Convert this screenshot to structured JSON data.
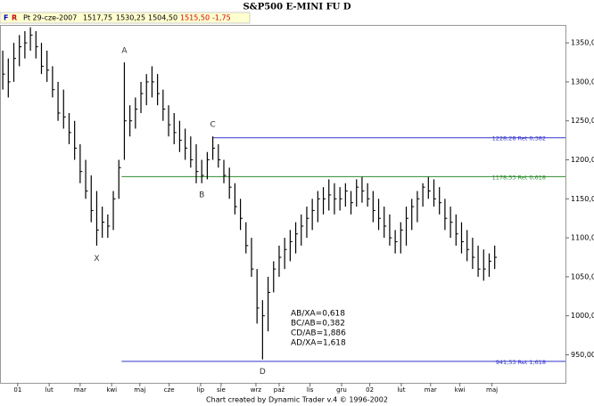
{
  "header": {
    "f": "F",
    "r": "R",
    "date": "Pt 29-cze-2007",
    "open": "1517,75",
    "high": "1530,25",
    "low": "1504,50",
    "close": "1515,50",
    "change": "-1,75"
  },
  "chart_data": {
    "type": "ohlc",
    "title": "S&P500 E-MINI FU D",
    "high": [
      1340,
      1330,
      1350,
      1360,
      1365,
      1370,
      1365,
      1350,
      1340,
      1320,
      1300,
      1290,
      1260,
      1250,
      1220,
      1200,
      1180,
      1160,
      1140,
      1130,
      1160,
      1200,
      1325,
      1270,
      1280,
      1300,
      1310,
      1320,
      1310,
      1290,
      1270,
      1260,
      1250,
      1240,
      1230,
      1220,
      1200,
      1210,
      1230,
      1220,
      1200,
      1190,
      1170,
      1150,
      1120,
      1100,
      1060,
      1020,
      1050,
      1070,
      1090,
      1100,
      1110,
      1120,
      1130,
      1140,
      1150,
      1160,
      1165,
      1175,
      1170,
      1165,
      1170,
      1160,
      1175,
      1178,
      1170,
      1160,
      1150,
      1140,
      1130,
      1110,
      1120,
      1140,
      1150,
      1160,
      1170,
      1178,
      1175,
      1165,
      1150,
      1140,
      1130,
      1120,
      1110,
      1100,
      1090,
      1085,
      1080,
      1090
    ],
    "low": [
      1290,
      1280,
      1300,
      1320,
      1330,
      1340,
      1330,
      1310,
      1300,
      1280,
      1250,
      1240,
      1220,
      1200,
      1170,
      1150,
      1120,
      1090,
      1100,
      1100,
      1110,
      1150,
      1200,
      1230,
      1240,
      1260,
      1270,
      1280,
      1270,
      1250,
      1230,
      1220,
      1210,
      1200,
      1190,
      1170,
      1170,
      1175,
      1200,
      1190,
      1170,
      1150,
      1130,
      1110,
      1080,
      1050,
      990,
      944,
      980,
      1030,
      1050,
      1060,
      1070,
      1080,
      1090,
      1100,
      1110,
      1120,
      1130,
      1135,
      1130,
      1135,
      1140,
      1130,
      1140,
      1145,
      1140,
      1120,
      1110,
      1100,
      1090,
      1080,
      1080,
      1090,
      1110,
      1120,
      1140,
      1150,
      1140,
      1130,
      1110,
      1100,
      1090,
      1080,
      1070,
      1060,
      1050,
      1045,
      1050,
      1060
    ],
    "close": [
      1310,
      1300,
      1330,
      1345,
      1350,
      1360,
      1345,
      1320,
      1315,
      1290,
      1260,
      1255,
      1235,
      1215,
      1185,
      1160,
      1135,
      1110,
      1120,
      1115,
      1150,
      1190,
      1250,
      1250,
      1265,
      1285,
      1300,
      1300,
      1285,
      1265,
      1245,
      1235,
      1225,
      1215,
      1200,
      1185,
      1180,
      1200,
      1215,
      1200,
      1180,
      1165,
      1140,
      1125,
      1090,
      1060,
      1010,
      1000,
      1030,
      1060,
      1075,
      1085,
      1095,
      1105,
      1115,
      1125,
      1135,
      1150,
      1150,
      1155,
      1150,
      1150,
      1160,
      1145,
      1165,
      1160,
      1150,
      1135,
      1125,
      1115,
      1100,
      1095,
      1110,
      1125,
      1140,
      1150,
      1165,
      1160,
      1150,
      1145,
      1125,
      1120,
      1105,
      1095,
      1085,
      1075,
      1060,
      1060,
      1070,
      1075
    ],
    "color": "#000000",
    "xlim": [
      -0.5,
      101.8
    ],
    "xticks": [
      {
        "value": 2.7,
        "label": "01"
      },
      {
        "value": 8.4,
        "label": "lut"
      },
      {
        "value": 14,
        "label": "mar"
      },
      {
        "value": 19.7,
        "label": "kwi"
      },
      {
        "value": 24.8,
        "label": "maj"
      },
      {
        "value": 30.1,
        "label": "cze"
      },
      {
        "value": 35.8,
        "label": "lip"
      },
      {
        "value": 39.5,
        "label": "sie"
      },
      {
        "value": 45.8,
        "label": "wrz"
      },
      {
        "value": 50,
        "label": "paź"
      },
      {
        "value": 55.6,
        "label": "lis"
      },
      {
        "value": 61.3,
        "label": "gru"
      },
      {
        "value": 66.4,
        "label": "02"
      },
      {
        "value": 72.1,
        "label": "lut"
      },
      {
        "value": 77.4,
        "label": "mar"
      },
      {
        "value": 82.7,
        "label": "kwi"
      },
      {
        "value": 88.5,
        "label": "maj"
      }
    ],
    "ylim": [
      914,
      1373
    ],
    "yticks": [
      {
        "value": 950,
        "label": "950,00"
      },
      {
        "value": 1000,
        "label": "1000,00"
      },
      {
        "value": 1050,
        "label": "1050,00"
      },
      {
        "value": 1100,
        "label": "1100,00"
      },
      {
        "value": 1150,
        "label": "1150,00"
      },
      {
        "value": 1200,
        "label": "1200,00"
      },
      {
        "value": 1250,
        "label": "1250,00"
      },
      {
        "value": 1300,
        "label": "1300,00"
      },
      {
        "value": 1350,
        "label": "1350,00"
      }
    ],
    "levels": [
      {
        "value": 1228.28,
        "label": "1228,28 Ret 0,382",
        "from": 38,
        "color": "#3333cc"
      },
      {
        "value": 1178.53,
        "label": "1178,53 Ret 0,618",
        "from": 21.5,
        "color": "#2e8b2e"
      },
      {
        "value": 941.53,
        "label": "941,53 Ret 1,618",
        "from": 21.5,
        "color": "#3333cc"
      }
    ],
    "annotations": [
      {
        "text": "A",
        "x": 22,
        "y": 1340
      },
      {
        "text": "X",
        "x": 17,
        "y": 1073
      },
      {
        "text": "B",
        "x": 36,
        "y": 1155
      },
      {
        "text": "C",
        "x": 38,
        "y": 1245
      },
      {
        "text": "D",
        "x": 47,
        "y": 928
      }
    ],
    "ratios": [
      "AB/XA=0,618",
      "BC/AB=0,382",
      "CD/AB=1,886",
      "AD/XA=1,618"
    ],
    "footer": "Chart created by Dynamic Trader v.4 © 1996-2002"
  }
}
